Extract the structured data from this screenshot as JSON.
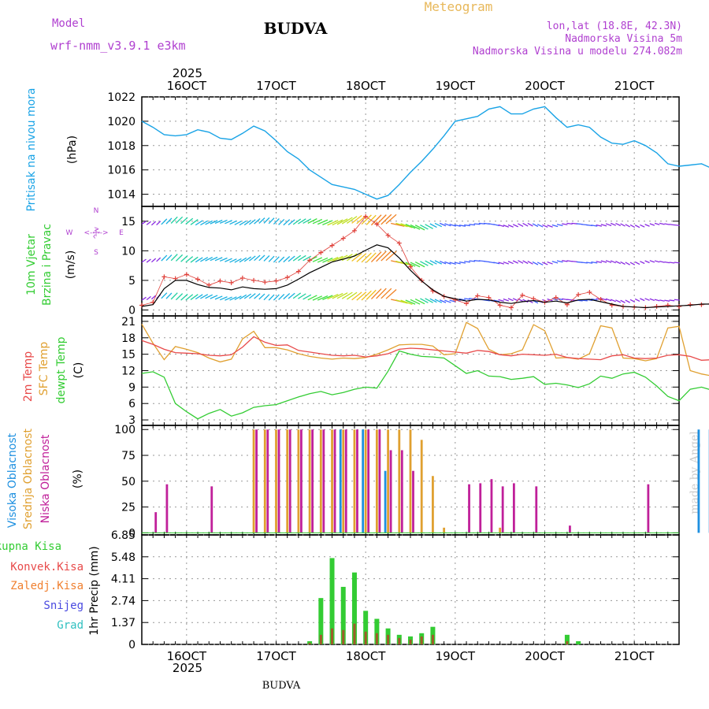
{
  "header": {
    "model_label": "Model",
    "model_name": "wrf-nmm_v3.9.1 e3km",
    "station": "BUDVA",
    "meteogram": "Meteogram",
    "lonlat": "lon,lat (18.8E, 42.3N)",
    "altitude": "Nadmorska Visina 5m",
    "model_altitude": "Nadmorska Visina u modelu 274.082m"
  },
  "footer": {
    "station": "BUDVA",
    "credit": "made by Angel"
  },
  "colors": {
    "pressure": "#19a3e6",
    "wind": "#000000",
    "gust": "#e0403a",
    "temp2m": "#e84a4a",
    "sfc": "#e0a030",
    "dewpt": "#33cc33",
    "high_cloud": "#1e90e0",
    "mid_cloud": "#e0a030",
    "low_cloud": "#c0209a",
    "total_precip": "#33cc33",
    "conv_precip": "#e84a4a",
    "frozen": "#f08030",
    "snow": "#4a4ae0",
    "graupel": "#30c0c0",
    "model": "#b040d0"
  },
  "chart_data": [
    {
      "type": "line",
      "id": "pressure",
      "title": "Pritisak na nivou mora",
      "ylabel": "(hPa)",
      "ylim": [
        1013,
        1022
      ],
      "yticks": [
        "1014",
        "1016",
        "1018",
        "1020",
        "1022"
      ],
      "x_start_day": 15.5,
      "x_end_day": 21.5,
      "step_hours": 3,
      "top_year": "2025",
      "bottom_year": "2025",
      "date_labels": [
        "16OCT",
        "17OCT",
        "18OCT",
        "19OCT",
        "20OCT",
        "21OCT"
      ],
      "series": [
        {
          "name": "Pritisak",
          "values": [
            1020.0,
            1019.5,
            1018.9,
            1018.8,
            1018.9,
            1019.3,
            1019.1,
            1018.6,
            1018.5,
            1019.0,
            1019.6,
            1019.2,
            1018.4,
            1017.5,
            1016.9,
            1016.0,
            1015.4,
            1014.8,
            1014.6,
            1014.4,
            1014.0,
            1013.6,
            1013.9,
            1014.8,
            1015.8,
            1016.7,
            1017.7,
            1018.8,
            1020.0,
            1020.2,
            1020.4,
            1021.0,
            1021.2,
            1020.6,
            1020.6,
            1021.0,
            1021.2,
            1020.3,
            1019.5,
            1019.7,
            1019.5,
            1018.7,
            1018.2,
            1018.1,
            1018.4,
            1018.0,
            1017.4,
            1016.5,
            1016.3,
            1016.4,
            1016.5,
            1016.1,
            1015.8,
            1015.4,
            1015.9,
            1015.6
          ]
        }
      ]
    },
    {
      "type": "line",
      "id": "wind",
      "title": "10m Vjetar",
      "title2": "Brzina i Pravac",
      "ylabel": "(m/s)",
      "ylim": [
        -1,
        17.5
      ],
      "yticks": [
        "0",
        "5",
        "10",
        "15"
      ],
      "compass": {
        "n": "N",
        "s": "S",
        "w": "W",
        "e": "E",
        "glyph": "<--|-->",
        "vglyph": "^|v"
      },
      "series": [
        {
          "name": "Brzina",
          "values": [
            0.6,
            0.9,
            3.6,
            5.0,
            5.0,
            4.3,
            3.8,
            3.7,
            3.4,
            3.9,
            3.6,
            3.5,
            3.6,
            4.2,
            5.2,
            6.3,
            7.2,
            8.1,
            8.6,
            9.1,
            10.1,
            11.0,
            10.5,
            8.8,
            6.7,
            4.9,
            3.4,
            2.3,
            1.9,
            1.5,
            1.8,
            1.7,
            1.3,
            1.1,
            1.4,
            1.6,
            1.3,
            1.5,
            1.2,
            1.7,
            1.8,
            1.4,
            1.0,
            0.6,
            0.5,
            0.4,
            0.5,
            0.6,
            0.7,
            0.8,
            1.0,
            1.0,
            1.1,
            1.2,
            1.5,
            1.4
          ]
        },
        {
          "name": "Udari",
          "values": [
            0.8,
            1.3,
            5.6,
            5.3,
            6.0,
            5.2,
            4.2,
            4.9,
            4.6,
            5.4,
            5.0,
            4.7,
            4.9,
            5.5,
            6.5,
            8.4,
            9.7,
            10.9,
            12.1,
            13.4,
            15.8,
            14.5,
            12.6,
            11.3,
            7.3,
            5.0,
            3.2,
            2.3,
            1.7,
            1.1,
            2.4,
            2.1,
            0.8,
            0.4,
            2.5,
            1.9,
            1.3,
            2.1,
            0.9,
            2.6,
            3.0,
            1.8,
            0.8,
            0.6,
            0.5,
            0.4,
            0.6,
            0.8,
            0.6,
            0.9,
            0.9,
            1.1,
            1.2,
            1.3,
            2.7,
            1.9
          ]
        }
      ]
    },
    {
      "type": "line",
      "id": "temp",
      "title": "2m Temp",
      "title_sfc": "SFC Temp",
      "title_dew": "dewpt Temp",
      "ylabel": "(C)",
      "ylim": [
        2,
        22
      ],
      "yticks": [
        "3",
        "6",
        "9",
        "12",
        "15",
        "18",
        "21"
      ],
      "series": [
        {
          "name": "2m Temp",
          "values": [
            17.5,
            16.8,
            15.9,
            15.3,
            15.2,
            15.1,
            14.8,
            14.7,
            14.9,
            16.3,
            18.2,
            17.2,
            16.6,
            16.7,
            15.7,
            15.4,
            15.1,
            14.8,
            14.7,
            14.8,
            14.5,
            14.7,
            15.1,
            15.9,
            16.1,
            16.0,
            15.8,
            15.6,
            15.4,
            15.2,
            15.7,
            15.5,
            14.9,
            14.7,
            15.0,
            14.9,
            14.8,
            15.0,
            14.4,
            14.2,
            14.1,
            14.0,
            14.7,
            14.9,
            14.3,
            14.2,
            14.3,
            14.8,
            14.9,
            14.6,
            13.9,
            14.0,
            14.1,
            15.2,
            16.0,
            16.3
          ]
        },
        {
          "name": "SFC Temp",
          "values": [
            20.5,
            17.0,
            14.0,
            16.4,
            15.9,
            15.3,
            14.3,
            13.6,
            14.1,
            17.8,
            19.2,
            16.2,
            16.2,
            15.8,
            15.1,
            14.6,
            14.3,
            14.1,
            14.3,
            14.2,
            14.4,
            15.0,
            15.8,
            16.7,
            16.8,
            16.8,
            16.5,
            14.9,
            15.1,
            20.8,
            19.7,
            15.9,
            14.9,
            15.1,
            15.8,
            20.4,
            19.3,
            14.3,
            14.4,
            14.1,
            15.1,
            20.2,
            19.8,
            14.3,
            14.2,
            13.8,
            14.2,
            19.8,
            20.1,
            12.0,
            11.4,
            11.0,
            10.7,
            19.2,
            20.8,
            20.5
          ]
        },
        {
          "name": "dewpt Temp",
          "values": [
            11.5,
            11.8,
            10.8,
            6.0,
            4.5,
            3.2,
            4.2,
            4.9,
            3.7,
            4.3,
            5.3,
            5.6,
            5.8,
            6.5,
            7.2,
            7.8,
            8.2,
            7.6,
            8.0,
            8.6,
            9.0,
            8.8,
            11.9,
            15.6,
            15.0,
            14.6,
            14.5,
            14.3,
            12.9,
            11.5,
            12.0,
            11.0,
            10.9,
            10.4,
            10.6,
            10.9,
            9.5,
            9.7,
            9.4,
            8.9,
            9.6,
            11.0,
            10.6,
            11.4,
            11.7,
            10.8,
            9.2,
            7.3,
            6.5,
            8.6,
            9.0,
            8.4,
            8.1,
            6.9,
            3.8,
            3.1
          ]
        }
      ]
    },
    {
      "type": "bar",
      "id": "clouds",
      "title": "Visoka Oblacnost",
      "title_mid": "Srednja Oblacnost",
      "title_low": "Niska Oblacnost",
      "ylabel": "(%)",
      "ylim": [
        0,
        100
      ],
      "yticks": [
        "0",
        "25",
        "50",
        "75",
        "100"
      ],
      "series": [
        {
          "name": "Visoka",
          "values": [
            0,
            0,
            0,
            0,
            0,
            0,
            0,
            0,
            0,
            0,
            0,
            0,
            0,
            0,
            0,
            0,
            0,
            0,
            100,
            0,
            100,
            0,
            60,
            0,
            0,
            0,
            0,
            0,
            0,
            0,
            0,
            0,
            0,
            0,
            0,
            0,
            0,
            0,
            0,
            0,
            0,
            0,
            0,
            0,
            0,
            0,
            0,
            0,
            0,
            0,
            100,
            100,
            100,
            100,
            100,
            0
          ]
        },
        {
          "name": "Srednja",
          "values": [
            0,
            0,
            0,
            0,
            0,
            0,
            0,
            0,
            0,
            0,
            100,
            100,
            100,
            100,
            100,
            100,
            100,
            100,
            100,
            100,
            100,
            100,
            100,
            100,
            100,
            90,
            55,
            5,
            0,
            0,
            0,
            0,
            5,
            0,
            0,
            0,
            0,
            0,
            0,
            0,
            0,
            0,
            0,
            0,
            0,
            0,
            0,
            0,
            0,
            0,
            0,
            0,
            0,
            0,
            0,
            0
          ]
        },
        {
          "name": "Niska",
          "values": [
            0,
            20,
            47,
            0,
            0,
            0,
            45,
            0,
            0,
            0,
            100,
            100,
            100,
            100,
            100,
            100,
            100,
            100,
            100,
            100,
            100,
            100,
            80,
            80,
            60,
            0,
            0,
            0,
            0,
            47,
            48,
            52,
            45,
            48,
            0,
            45,
            0,
            0,
            7,
            0,
            0,
            0,
            0,
            0,
            0,
            47,
            0,
            0,
            0,
            0,
            0,
            0,
            0,
            0,
            0,
            0
          ]
        }
      ]
    },
    {
      "type": "bar",
      "id": "precip",
      "title": "Ukupna Kisa",
      "title_conv": "Konvek.Kisa",
      "title_frozen": "Zaledj.Kisa",
      "title_snow": "Snijeg",
      "title_grad": "Grad",
      "ylabel": "1hr Precip (mm)",
      "ylim": [
        0,
        6.85
      ],
      "yticks": [
        "0",
        "1.37",
        "2.74",
        "4.11",
        "5.48",
        "6.85"
      ],
      "series": [
        {
          "name": "Ukupna Kisa",
          "values": [
            0,
            0,
            0,
            0,
            0,
            0,
            0,
            0,
            0,
            0,
            0,
            0,
            0,
            0,
            0,
            0.2,
            2.9,
            5.4,
            3.6,
            4.5,
            2.1,
            1.6,
            1.0,
            0.6,
            0.5,
            0.7,
            1.1,
            0,
            0,
            0,
            0,
            0,
            0,
            0,
            0,
            0,
            0,
            0,
            0.6,
            0.2,
            0,
            0,
            0,
            0,
            0,
            0,
            0,
            0,
            0,
            0,
            0,
            0,
            0,
            0,
            0,
            0
          ]
        },
        {
          "name": "Konvek.Kisa",
          "values": [
            0,
            0,
            0,
            0,
            0,
            0,
            0,
            0,
            0,
            0,
            0,
            0,
            0,
            0,
            0,
            0.1,
            0.6,
            1.0,
            0.9,
            1.3,
            0.8,
            0.7,
            0.6,
            0.4,
            0.3,
            0.5,
            0.6,
            0,
            0,
            0,
            0,
            0,
            0,
            0,
            0,
            0,
            0,
            0,
            0.2,
            0,
            0,
            0,
            0,
            0,
            0,
            0,
            0,
            0,
            0,
            0,
            0,
            0,
            0,
            0,
            0,
            0
          ]
        }
      ]
    }
  ]
}
